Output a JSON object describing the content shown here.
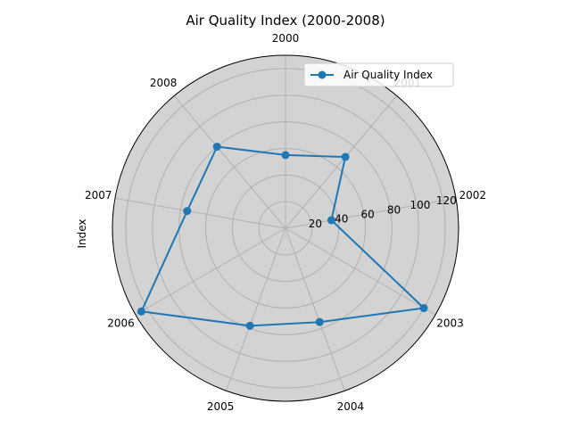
{
  "chart_data": {
    "type": "radar",
    "title": "Air Quality Index (2000-2008)",
    "ylabel": "Index",
    "categories": [
      "2000",
      "2001",
      "2002",
      "2003",
      "2004",
      "2005",
      "2006",
      "2007",
      "2008"
    ],
    "series": [
      {
        "name": "Air Quality Index",
        "values": [
          55,
          70,
          35,
          120,
          75,
          78,
          125,
          75,
          80
        ],
        "color": "#1f77b4"
      }
    ],
    "radial_ticks": [
      "20",
      "40",
      "60",
      "80",
      "100",
      "120"
    ],
    "radial_tick_values": [
      20,
      40,
      60,
      80,
      100,
      120
    ],
    "rlim": [
      0,
      130
    ],
    "grid": true,
    "legend_position": "upper-right",
    "background_color": "#d3d3d3"
  }
}
